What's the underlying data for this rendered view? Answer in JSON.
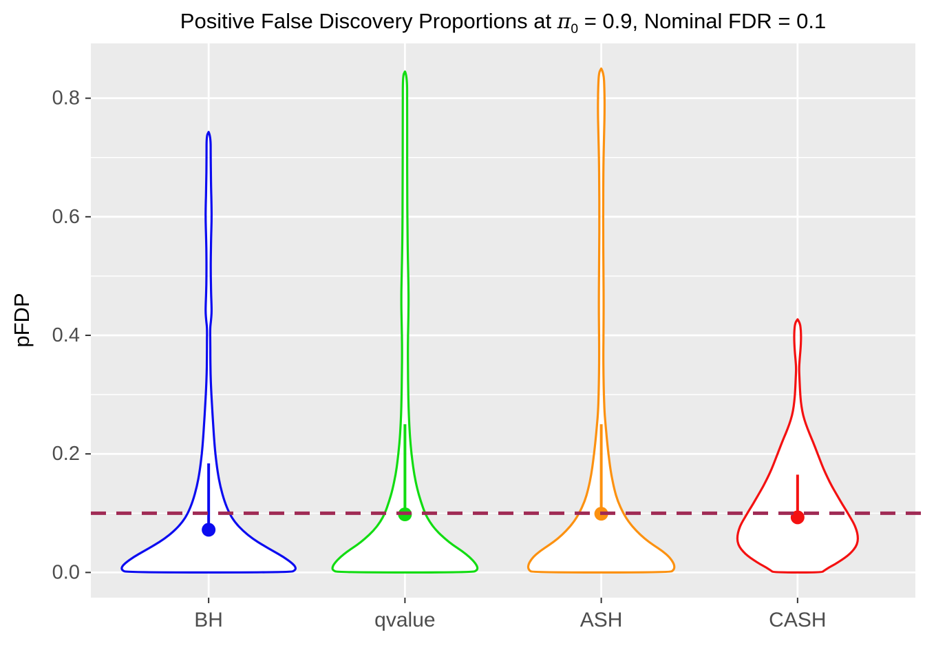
{
  "title": {
    "pre": "Positive False Discovery Proportions at ",
    "pi": "π",
    "pi_sub": "0",
    "post": " = 0.9, Nominal FDR = 0.1"
  },
  "axes": {
    "y_title": "pFDP",
    "y_tick_labels": [
      "0.0",
      "0.2",
      "0.4",
      "0.6",
      "0.8"
    ],
    "x_category_labels": [
      "BH",
      "qvalue",
      "ASH",
      "CASH"
    ]
  },
  "style": {
    "panel_bg": "#EBEBEB",
    "grid_color": "#FFFFFF",
    "axis_text_color": "#4D4D4D",
    "tick_mark_color": "#333333",
    "violin_fill": "#FFFFFF"
  },
  "chart_data": {
    "type": "violin",
    "title": "Positive False Discovery Proportions at π₀ = 0.9, Nominal FDR = 0.1",
    "xlabel": "",
    "ylabel": "pFDP",
    "categories": [
      "BH",
      "qvalue",
      "ASH",
      "CASH"
    ],
    "ylim": [
      -0.0425,
      0.8925
    ],
    "y_major_ticks": [
      0.0,
      0.2,
      0.4,
      0.6,
      0.8
    ],
    "y_minor_ticks": [
      0.1,
      0.3,
      0.5,
      0.7
    ],
    "grid": true,
    "legend": "none",
    "hline": {
      "y": 0.1,
      "color": "#A02B55",
      "style": "dashed",
      "meaning": "Nominal FDR = 0.1"
    },
    "series": [
      {
        "name": "BH",
        "color": "#0C0CF0",
        "point_estimate": 0.072,
        "whisker": [
          0.072,
          0.184
        ],
        "max": 0.743,
        "min": 0.0,
        "profile": [
          [
            0.743,
            0
          ],
          [
            0.736,
            3
          ],
          [
            0.7,
            3
          ],
          [
            0.65,
            3.5
          ],
          [
            0.62,
            4.2
          ],
          [
            0.595,
            4.4
          ],
          [
            0.565,
            3.6
          ],
          [
            0.53,
            3.1
          ],
          [
            0.5,
            3.1
          ],
          [
            0.47,
            3.6
          ],
          [
            0.452,
            4.2
          ],
          [
            0.438,
            4.4
          ],
          [
            0.424,
            3.4
          ],
          [
            0.412,
            2.2
          ],
          [
            0.39,
            2.4
          ],
          [
            0.36,
            2.5
          ],
          [
            0.335,
            2.8
          ],
          [
            0.31,
            3.6
          ],
          [
            0.28,
            5
          ],
          [
            0.25,
            6.6
          ],
          [
            0.225,
            8
          ],
          [
            0.2,
            9.8
          ],
          [
            0.17,
            13
          ],
          [
            0.145,
            17
          ],
          [
            0.12,
            23
          ],
          [
            0.1,
            30
          ],
          [
            0.085,
            38
          ],
          [
            0.07,
            50
          ],
          [
            0.057,
            64
          ],
          [
            0.046,
            79
          ],
          [
            0.036,
            94
          ],
          [
            0.026,
            109
          ],
          [
            0.016,
            121
          ],
          [
            0.009,
            126.5
          ],
          [
            0.004,
            126
          ],
          [
            0.0,
            119
          ]
        ]
      },
      {
        "name": "qvalue",
        "color": "#12DC12",
        "point_estimate": 0.098,
        "whisker": [
          0.098,
          0.25
        ],
        "max": 0.845,
        "min": 0.0,
        "profile": [
          [
            0.845,
            0
          ],
          [
            0.838,
            3
          ],
          [
            0.79,
            3.2
          ],
          [
            0.72,
            3.2
          ],
          [
            0.65,
            3.3
          ],
          [
            0.58,
            3.6
          ],
          [
            0.53,
            4.2
          ],
          [
            0.49,
            5
          ],
          [
            0.46,
            5.3
          ],
          [
            0.43,
            5
          ],
          [
            0.4,
            4.4
          ],
          [
            0.37,
            4.2
          ],
          [
            0.34,
            4.4
          ],
          [
            0.31,
            4.7
          ],
          [
            0.28,
            5.2
          ],
          [
            0.25,
            6.2
          ],
          [
            0.22,
            7.8
          ],
          [
            0.19,
            10.5
          ],
          [
            0.165,
            13.5
          ],
          [
            0.14,
            18
          ],
          [
            0.12,
            23
          ],
          [
            0.1,
            29
          ],
          [
            0.085,
            36
          ],
          [
            0.07,
            46
          ],
          [
            0.057,
            58
          ],
          [
            0.046,
            70
          ],
          [
            0.036,
            83
          ],
          [
            0.026,
            94
          ],
          [
            0.016,
            102
          ],
          [
            0.009,
            105.5
          ],
          [
            0.004,
            105
          ],
          [
            0.0,
            98
          ]
        ]
      },
      {
        "name": "ASH",
        "color": "#FC9110",
        "point_estimate": 0.099,
        "whisker": [
          0.099,
          0.25
        ],
        "max": 0.85,
        "min": 0.0,
        "profile": [
          [
            0.85,
            0
          ],
          [
            0.843,
            3.5
          ],
          [
            0.815,
            4.6
          ],
          [
            0.78,
            4.9
          ],
          [
            0.745,
            4.3
          ],
          [
            0.7,
            3.3
          ],
          [
            0.65,
            2.9
          ],
          [
            0.6,
            2.8
          ],
          [
            0.55,
            2.9
          ],
          [
            0.5,
            3.3
          ],
          [
            0.45,
            3.5
          ],
          [
            0.41,
            3.3
          ],
          [
            0.37,
            3.0
          ],
          [
            0.335,
            3.2
          ],
          [
            0.3,
            3.8
          ],
          [
            0.27,
            4.7
          ],
          [
            0.25,
            6.2
          ],
          [
            0.22,
            8.5
          ],
          [
            0.19,
            11.5
          ],
          [
            0.165,
            14.5
          ],
          [
            0.14,
            19
          ],
          [
            0.12,
            24
          ],
          [
            0.1,
            32
          ],
          [
            0.085,
            40
          ],
          [
            0.07,
            51
          ],
          [
            0.057,
            63
          ],
          [
            0.046,
            76
          ],
          [
            0.036,
            89
          ],
          [
            0.026,
            99
          ],
          [
            0.016,
            105
          ],
          [
            0.009,
            106.5
          ],
          [
            0.004,
            105
          ],
          [
            0.0,
            100
          ]
        ]
      },
      {
        "name": "CASH",
        "color": "#F41111",
        "point_estimate": 0.093,
        "whisker": [
          0.093,
          0.165
        ],
        "max": 0.427,
        "min": 0.0,
        "profile": [
          [
            0.427,
            0
          ],
          [
            0.421,
            3.5
          ],
          [
            0.408,
            4.8
          ],
          [
            0.394,
            5
          ],
          [
            0.378,
            4.4
          ],
          [
            0.358,
            2.9
          ],
          [
            0.344,
            2.1
          ],
          [
            0.328,
            2.7
          ],
          [
            0.312,
            3.3
          ],
          [
            0.296,
            4.1
          ],
          [
            0.28,
            5.6
          ],
          [
            0.265,
            8
          ],
          [
            0.25,
            12
          ],
          [
            0.235,
            17
          ],
          [
            0.22,
            22.5
          ],
          [
            0.205,
            27.5
          ],
          [
            0.19,
            32.5
          ],
          [
            0.175,
            37.5
          ],
          [
            0.16,
            43.5
          ],
          [
            0.145,
            50
          ],
          [
            0.13,
            57.5
          ],
          [
            0.115,
            65
          ],
          [
            0.102,
            72
          ],
          [
            0.092,
            77
          ],
          [
            0.082,
            82
          ],
          [
            0.072,
            85.5
          ],
          [
            0.062,
            87.5
          ],
          [
            0.052,
            87.5
          ],
          [
            0.043,
            84.5
          ],
          [
            0.035,
            79
          ],
          [
            0.028,
            72.5
          ],
          [
            0.021,
            64
          ],
          [
            0.014,
            54.5
          ],
          [
            0.008,
            45
          ],
          [
            0.003,
            38.5
          ],
          [
            0.0,
            35
          ]
        ]
      }
    ]
  }
}
